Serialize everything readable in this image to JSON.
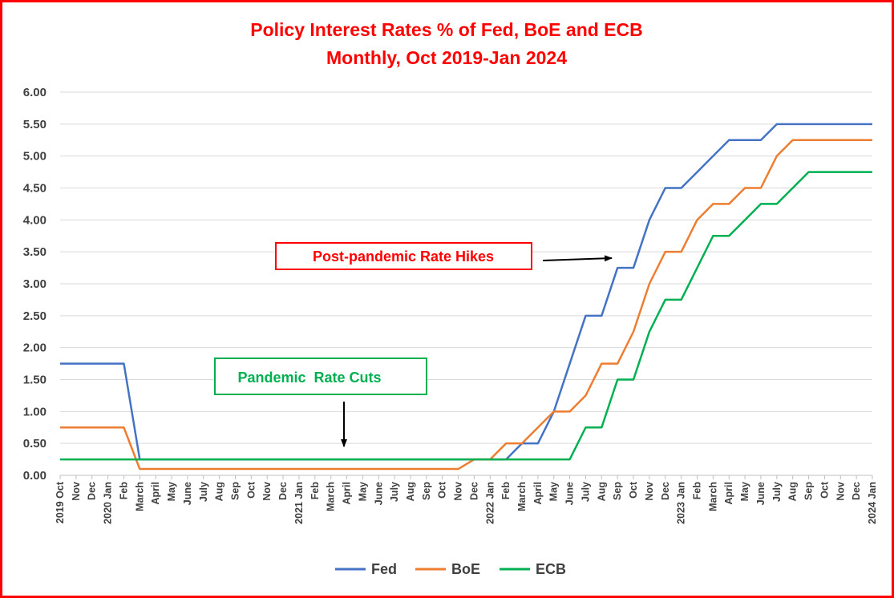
{
  "chart_data": {
    "type": "line",
    "title": "Policy Interest Rates % of Fed, BoE and ECB",
    "subtitle": "Monthly, Oct 2019-Jan 2024",
    "xlabel": "",
    "ylabel": "",
    "ylim": [
      0,
      6
    ],
    "yticks": [
      "0.00",
      "0.50",
      "1.00",
      "1.50",
      "2.00",
      "2.50",
      "3.00",
      "3.50",
      "4.00",
      "4.50",
      "5.00",
      "5.50",
      "6.00"
    ],
    "grid": true,
    "legend_position": "bottom",
    "categories": [
      "2019 Oct",
      "Nov",
      "Dec",
      "2020 Jan",
      "Feb",
      "March",
      "April",
      "May",
      "June",
      "July",
      "Aug",
      "Sep",
      "Oct",
      "Nov",
      "Dec",
      "2021 Jan",
      "Feb",
      "March",
      "April",
      "May",
      "June",
      "July",
      "Aug",
      "Sep",
      "Oct",
      "Nov",
      "Dec",
      "2022 Jan",
      "Feb",
      "March",
      "April",
      "May",
      "June",
      "July",
      "Aug",
      "Sep",
      "Oct",
      "Nov",
      "Dec",
      "2023 Jan",
      "Feb",
      "March",
      "April",
      "May",
      "June",
      "July",
      "Aug",
      "Sep",
      "Oct",
      "Nov",
      "Dec",
      "2024 Jan"
    ],
    "series": [
      {
        "name": "Fed",
        "color": "#4472c4",
        "values": [
          1.75,
          1.75,
          1.75,
          1.75,
          1.75,
          0.25,
          0.25,
          0.25,
          0.25,
          0.25,
          0.25,
          0.25,
          0.25,
          0.25,
          0.25,
          0.25,
          0.25,
          0.25,
          0.25,
          0.25,
          0.25,
          0.25,
          0.25,
          0.25,
          0.25,
          0.25,
          0.25,
          0.25,
          0.25,
          0.5,
          0.5,
          1.0,
          1.75,
          2.5,
          2.5,
          3.25,
          3.25,
          4.0,
          4.5,
          4.5,
          4.75,
          5.0,
          5.25,
          5.25,
          5.25,
          5.5,
          5.5,
          5.5,
          5.5,
          5.5,
          5.5,
          5.5
        ]
      },
      {
        "name": "BoE",
        "color": "#ed7d31",
        "values": [
          0.75,
          0.75,
          0.75,
          0.75,
          0.75,
          0.1,
          0.1,
          0.1,
          0.1,
          0.1,
          0.1,
          0.1,
          0.1,
          0.1,
          0.1,
          0.1,
          0.1,
          0.1,
          0.1,
          0.1,
          0.1,
          0.1,
          0.1,
          0.1,
          0.1,
          0.1,
          0.25,
          0.25,
          0.5,
          0.5,
          0.75,
          1.0,
          1.0,
          1.25,
          1.75,
          1.75,
          2.25,
          3.0,
          3.5,
          3.5,
          4.0,
          4.25,
          4.25,
          4.5,
          4.5,
          5.0,
          5.25,
          5.25,
          5.25,
          5.25,
          5.25,
          5.25
        ]
      },
      {
        "name": "ECB",
        "color": "#00b050",
        "values": [
          0.25,
          0.25,
          0.25,
          0.25,
          0.25,
          0.25,
          0.25,
          0.25,
          0.25,
          0.25,
          0.25,
          0.25,
          0.25,
          0.25,
          0.25,
          0.25,
          0.25,
          0.25,
          0.25,
          0.25,
          0.25,
          0.25,
          0.25,
          0.25,
          0.25,
          0.25,
          0.25,
          0.25,
          0.25,
          0.25,
          0.25,
          0.25,
          0.25,
          0.75,
          0.75,
          1.5,
          1.5,
          2.25,
          2.75,
          2.75,
          3.25,
          3.75,
          3.75,
          4.0,
          4.25,
          4.25,
          4.5,
          4.75,
          4.75,
          4.75,
          4.75,
          4.75
        ]
      }
    ],
    "annotations": [
      {
        "text": "Post-pandemic Rate Hikes",
        "color": "#ff0000",
        "arrow": "right"
      },
      {
        "text": "Pandemic  Rate Cuts",
        "color": "#00b050",
        "arrow": "down"
      }
    ]
  }
}
